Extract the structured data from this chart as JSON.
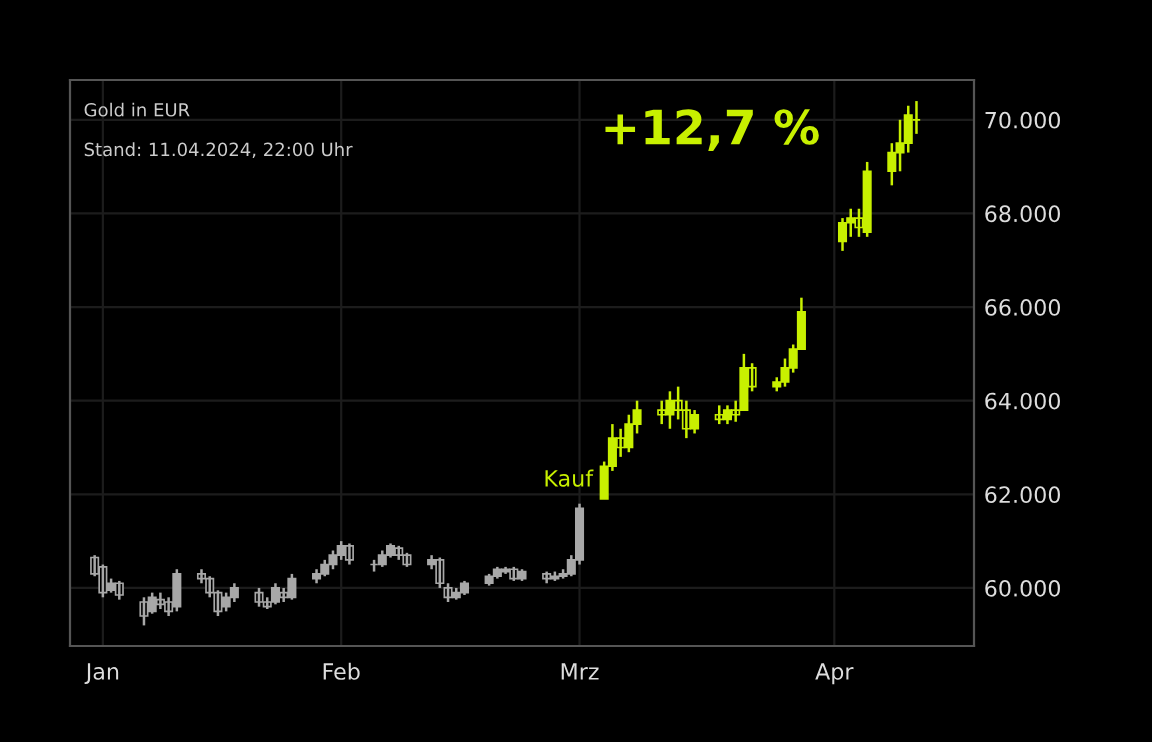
{
  "chart_data": {
    "type": "candlestick",
    "title": "Gold in EUR",
    "subtitle": "Stand: 11.04.2024, 22:00 Uhr",
    "annotations": [
      "+12,7 %",
      {
        "text": "Kauf",
        "x": "2024-03-04",
        "y": 62300
      }
    ],
    "series": [
      {
        "color": "#a8a8a8",
        "x": [
          "2024-01-02",
          "2024-01-03",
          "2024-01-04",
          "2024-01-05",
          "2024-01-08",
          "2024-01-09",
          "2024-01-10",
          "2024-01-11",
          "2024-01-12",
          "2024-01-15",
          "2024-01-16",
          "2024-01-17",
          "2024-01-18",
          "2024-01-19",
          "2024-01-22",
          "2024-01-23",
          "2024-01-24",
          "2024-01-25",
          "2024-01-26",
          "2024-01-29",
          "2024-01-30",
          "2024-01-31",
          "2024-02-01",
          "2024-02-02",
          "2024-02-05",
          "2024-02-06",
          "2024-02-07",
          "2024-02-08",
          "2024-02-09",
          "2024-02-12",
          "2024-02-13",
          "2024-02-14",
          "2024-02-15",
          "2024-02-16",
          "2024-02-19",
          "2024-02-20",
          "2024-02-21",
          "2024-02-22",
          "2024-02-23",
          "2024-02-26",
          "2024-02-27",
          "2024-02-28",
          "2024-02-29",
          "2024-03-01"
        ],
        "ohlc": [
          [
            60650,
            60700,
            60250,
            60300
          ],
          [
            60450,
            60500,
            59800,
            59900
          ],
          [
            59950,
            60200,
            59900,
            60100
          ],
          [
            60100,
            60150,
            59750,
            59850
          ],
          [
            59700,
            59800,
            59200,
            59400
          ],
          [
            59500,
            59900,
            59450,
            59800
          ],
          [
            59750,
            59900,
            59550,
            59650
          ],
          [
            59700,
            59800,
            59400,
            59500
          ],
          [
            59600,
            60400,
            59500,
            60300
          ],
          [
            60300,
            60400,
            60100,
            60200
          ],
          [
            60200,
            60250,
            59800,
            59900
          ],
          [
            59900,
            59950,
            59400,
            59500
          ],
          [
            59600,
            59900,
            59500,
            59800
          ],
          [
            59800,
            60100,
            59700,
            60000
          ],
          [
            59900,
            60000,
            59600,
            59700
          ],
          [
            59700,
            59800,
            59550,
            59600
          ],
          [
            59700,
            60100,
            59650,
            60000
          ],
          [
            59900,
            60000,
            59700,
            59800
          ],
          [
            59800,
            60300,
            59750,
            60200
          ],
          [
            60200,
            60400,
            60100,
            60300
          ],
          [
            60300,
            60600,
            60250,
            60500
          ],
          [
            60500,
            60800,
            60400,
            60700
          ],
          [
            60700,
            61000,
            60600,
            60900
          ],
          [
            60900,
            60950,
            60500,
            60600
          ],
          [
            60500,
            60600,
            60350,
            60500
          ],
          [
            60500,
            60800,
            60450,
            60700
          ],
          [
            60700,
            60950,
            60650,
            60900
          ],
          [
            60850,
            60900,
            60600,
            60700
          ],
          [
            60700,
            60750,
            60450,
            60500
          ],
          [
            60500,
            60700,
            60400,
            60600
          ],
          [
            60600,
            60650,
            60000,
            60100
          ],
          [
            60000,
            60100,
            59700,
            59800
          ],
          [
            59800,
            60000,
            59750,
            59900
          ],
          [
            59900,
            60150,
            59850,
            60100
          ],
          [
            60100,
            60300,
            60050,
            60250
          ],
          [
            60250,
            60450,
            60200,
            60400
          ],
          [
            60350,
            60450,
            60300,
            60400
          ],
          [
            60400,
            60450,
            60150,
            60200
          ],
          [
            60200,
            60400,
            60150,
            60350
          ],
          [
            60300,
            60350,
            60100,
            60200
          ],
          [
            60200,
            60350,
            60150,
            60250
          ],
          [
            60250,
            60400,
            60200,
            60300
          ],
          [
            60300,
            60700,
            60250,
            60600
          ],
          [
            60600,
            61800,
            60500,
            61700
          ]
        ]
      },
      {
        "color": "#c8f000",
        "x": [
          "2024-03-04",
          "2024-03-05",
          "2024-03-06",
          "2024-03-07",
          "2024-03-08",
          "2024-03-11",
          "2024-03-12",
          "2024-03-13",
          "2024-03-14",
          "2024-03-15",
          "2024-03-18",
          "2024-03-19",
          "2024-03-20",
          "2024-03-21",
          "2024-03-22",
          "2024-03-25",
          "2024-03-26",
          "2024-03-27",
          "2024-03-28",
          "2024-04-02",
          "2024-04-03",
          "2024-04-04",
          "2024-04-05",
          "2024-04-08",
          "2024-04-09",
          "2024-04-10",
          "2024-04-11"
        ],
        "ohlc": [
          [
            61900,
            62700,
            61900,
            62600
          ],
          [
            62600,
            63500,
            62500,
            63200
          ],
          [
            63200,
            63400,
            62800,
            63000
          ],
          [
            63000,
            63700,
            62900,
            63500
          ],
          [
            63500,
            64000,
            63300,
            63800
          ],
          [
            63800,
            64000,
            63500,
            63700
          ],
          [
            63700,
            64200,
            63400,
            64000
          ],
          [
            64000,
            64300,
            63600,
            63800
          ],
          [
            63800,
            64000,
            63200,
            63400
          ],
          [
            63400,
            63800,
            63300,
            63700
          ],
          [
            63700,
            63900,
            63500,
            63600
          ],
          [
            63600,
            63900,
            63500,
            63800
          ],
          [
            63800,
            64000,
            63550,
            63700
          ],
          [
            63800,
            65000,
            63800,
            64700
          ],
          [
            64700,
            64800,
            64200,
            64300
          ],
          [
            64300,
            64500,
            64200,
            64400
          ],
          [
            64400,
            64900,
            64300,
            64700
          ],
          [
            64700,
            65200,
            64600,
            65100
          ],
          [
            65100,
            66200,
            65100,
            65900
          ],
          [
            67400,
            67900,
            67200,
            67800
          ],
          [
            67800,
            68100,
            67500,
            67900
          ],
          [
            67900,
            68100,
            67500,
            67700
          ],
          [
            67600,
            69100,
            67500,
            68900
          ],
          [
            68900,
            69500,
            68600,
            69300
          ],
          [
            69300,
            70000,
            68900,
            69500
          ],
          [
            69500,
            70300,
            69300,
            70100
          ],
          [
            70000,
            70400,
            69700,
            70000
          ]
        ]
      }
    ],
    "xlim": [
      "2023-12-30",
      "2024-04-18"
    ],
    "xticks": [
      {
        "value": "2024-01-03",
        "label": "Jan"
      },
      {
        "value": "2024-02-01",
        "label": "Feb"
      },
      {
        "value": "2024-03-01",
        "label": "Mrz"
      },
      {
        "value": "2024-04-01",
        "label": "Apr"
      }
    ],
    "ylim": [
      58760,
      70850
    ],
    "yticks": [
      {
        "value": 60000,
        "label": "60.000"
      },
      {
        "value": 62000,
        "label": "62.000"
      },
      {
        "value": 64000,
        "label": "64.000"
      },
      {
        "value": 66000,
        "label": "66.000"
      },
      {
        "value": 68000,
        "label": "68.000"
      },
      {
        "value": 70000,
        "label": "70.000"
      }
    ],
    "grid": true
  }
}
